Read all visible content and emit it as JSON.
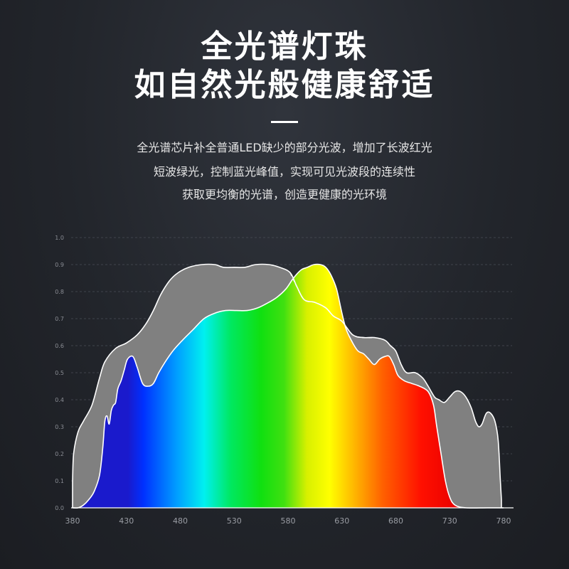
{
  "headline": {
    "line1": "全光谱灯珠",
    "line2": "如自然光般健康舒适"
  },
  "description": {
    "line1": "全光谱芯片补全普通LED缺少的部分光波，增加了长波红光",
    "line2": "短波绿光，控制蓝光峰值，实现可见光波段的连续性",
    "line3": "获取更均衡的光谱，创造更健康的光环境"
  },
  "chart_data": {
    "type": "area",
    "xlabel": "",
    "ylabel": "",
    "xlim": [
      380,
      780
    ],
    "ylim": [
      0,
      1.0
    ],
    "x_ticks": [
      "380",
      "430",
      "480",
      "530",
      "580",
      "630",
      "680",
      "730",
      "780"
    ],
    "y_ticks": [
      "0.0",
      "0.1",
      "0.2",
      "0.3",
      "0.4",
      "0.5",
      "0.6",
      "0.7",
      "0.8",
      "0.9",
      "1.0"
    ],
    "grid": true,
    "colors": {
      "sunlight_fill": "#808080",
      "outline": "#ffffff",
      "dashed_outline": "#ffffff"
    },
    "series": [
      {
        "points": [
          [
            380,
            0.1
          ],
          [
            381,
            0.2
          ],
          [
            385,
            0.28
          ],
          [
            390,
            0.32
          ],
          [
            398,
            0.38
          ],
          [
            405,
            0.48
          ],
          [
            410,
            0.54
          ],
          [
            420,
            0.59
          ],
          [
            430,
            0.61
          ],
          [
            440,
            0.64
          ],
          [
            448,
            0.68
          ],
          [
            455,
            0.73
          ],
          [
            462,
            0.79
          ],
          [
            470,
            0.84
          ],
          [
            478,
            0.87
          ],
          [
            488,
            0.89
          ],
          [
            500,
            0.9
          ],
          [
            512,
            0.9
          ],
          [
            520,
            0.89
          ],
          [
            530,
            0.89
          ],
          [
            540,
            0.89
          ],
          [
            550,
            0.9
          ],
          [
            562,
            0.9
          ],
          [
            572,
            0.89
          ],
          [
            582,
            0.87
          ],
          [
            588,
            0.82
          ],
          [
            595,
            0.77
          ],
          [
            605,
            0.76
          ],
          [
            615,
            0.74
          ],
          [
            622,
            0.71
          ],
          [
            630,
            0.69
          ],
          [
            640,
            0.64
          ],
          [
            650,
            0.63
          ],
          [
            660,
            0.63
          ],
          [
            670,
            0.62
          ],
          [
            675,
            0.6
          ],
          [
            680,
            0.58
          ],
          [
            685,
            0.53
          ],
          [
            690,
            0.5
          ],
          [
            698,
            0.5
          ],
          [
            705,
            0.48
          ],
          [
            710,
            0.45
          ],
          [
            716,
            0.41
          ],
          [
            720,
            0.4
          ],
          [
            725,
            0.39
          ],
          [
            730,
            0.41
          ],
          [
            735,
            0.43
          ],
          [
            740,
            0.43
          ],
          [
            745,
            0.41
          ],
          [
            750,
            0.37
          ],
          [
            754,
            0.32
          ],
          [
            757,
            0.3
          ],
          [
            760,
            0.31
          ],
          [
            764,
            0.35
          ],
          [
            768,
            0.35
          ],
          [
            772,
            0.32
          ],
          [
            775,
            0.25
          ],
          [
            777,
            0.1
          ],
          [
            778,
            0.03
          ]
        ]
      },
      {
        "points": [
          [
            380,
            0.0
          ],
          [
            385,
            0.0
          ],
          [
            390,
            0.01
          ],
          [
            395,
            0.03
          ],
          [
            400,
            0.06
          ],
          [
            405,
            0.12
          ],
          [
            408,
            0.22
          ],
          [
            410,
            0.32
          ],
          [
            412,
            0.34
          ],
          [
            414,
            0.31
          ],
          [
            416,
            0.36
          ],
          [
            418,
            0.38
          ],
          [
            420,
            0.39
          ],
          [
            422,
            0.44
          ],
          [
            425,
            0.47
          ],
          [
            428,
            0.51
          ],
          [
            431,
            0.55
          ],
          [
            436,
            0.56
          ],
          [
            440,
            0.52
          ],
          [
            445,
            0.46
          ],
          [
            450,
            0.45
          ],
          [
            455,
            0.46
          ],
          [
            460,
            0.5
          ],
          [
            466,
            0.54
          ],
          [
            473,
            0.58
          ],
          [
            482,
            0.62
          ],
          [
            492,
            0.66
          ],
          [
            502,
            0.7
          ],
          [
            512,
            0.72
          ],
          [
            522,
            0.73
          ],
          [
            532,
            0.73
          ],
          [
            542,
            0.73
          ],
          [
            552,
            0.74
          ],
          [
            562,
            0.76
          ],
          [
            570,
            0.78
          ],
          [
            578,
            0.81
          ],
          [
            585,
            0.85
          ],
          [
            592,
            0.88
          ],
          [
            598,
            0.89
          ],
          [
            604,
            0.9
          ],
          [
            610,
            0.9
          ],
          [
            615,
            0.89
          ],
          [
            620,
            0.86
          ],
          [
            625,
            0.81
          ],
          [
            630,
            0.72
          ],
          [
            634,
            0.66
          ],
          [
            640,
            0.61
          ],
          [
            645,
            0.58
          ],
          [
            650,
            0.57
          ],
          [
            655,
            0.55
          ],
          [
            660,
            0.53
          ],
          [
            665,
            0.55
          ],
          [
            670,
            0.56
          ],
          [
            674,
            0.56
          ],
          [
            678,
            0.53
          ],
          [
            682,
            0.49
          ],
          [
            688,
            0.47
          ],
          [
            695,
            0.46
          ],
          [
            702,
            0.45
          ],
          [
            710,
            0.43
          ],
          [
            715,
            0.38
          ],
          [
            718,
            0.3
          ],
          [
            722,
            0.2
          ],
          [
            726,
            0.1
          ],
          [
            730,
            0.04
          ],
          [
            735,
            0.01
          ],
          [
            745,
            0.0
          ],
          [
            765,
            0.0
          ],
          [
            780,
            0.0
          ]
        ]
      }
    ]
  }
}
